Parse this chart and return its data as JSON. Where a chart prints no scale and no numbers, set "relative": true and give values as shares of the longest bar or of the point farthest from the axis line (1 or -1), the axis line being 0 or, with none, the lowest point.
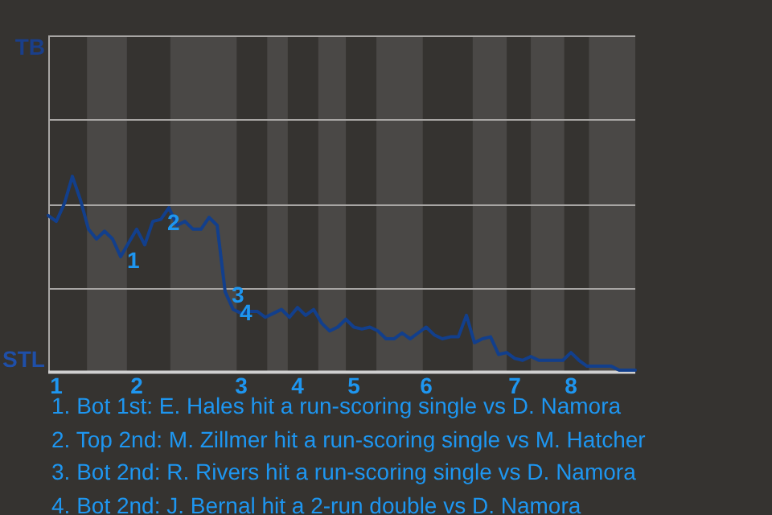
{
  "chart_data": {
    "type": "line",
    "relative": true,
    "categories": [
      null,
      "1",
      null,
      null,
      null,
      null,
      null,
      null,
      null,
      null,
      null,
      "2",
      null,
      null,
      null,
      null,
      null,
      null,
      null,
      null,
      null,
      null,
      null,
      null,
      "3",
      null,
      null,
      null,
      null,
      null,
      null,
      "4",
      null,
      null,
      null,
      null,
      null,
      null,
      "5",
      null,
      null,
      null,
      null,
      null,
      null,
      null,
      null,
      "6",
      null,
      null,
      null,
      null,
      null,
      null,
      null,
      null,
      null,
      null,
      "7",
      null,
      null,
      null,
      null,
      null,
      null,
      "8",
      null,
      null,
      null,
      null,
      null,
      null,
      null,
      null
    ],
    "series": [
      {
        "color": "#123f8c",
        "values": [
          0.8,
          0.77,
          0.86,
          1,
          0.88,
          0.73,
          0.68,
          0.72,
          0.68,
          0.59,
          0.66,
          0.73,
          0.65,
          0.77,
          0.78,
          0.84,
          0.75,
          0.77,
          0.73,
          0.73,
          0.79,
          0.75,
          0.41,
          0.32,
          0.3,
          0.31,
          0.31,
          0.28,
          0.3,
          0.32,
          0.28,
          0.33,
          0.29,
          0.32,
          0.25,
          0.21,
          0.23,
          0.27,
          0.23,
          0.22,
          0.23,
          0.21,
          0.17,
          0.17,
          0.2,
          0.17,
          0.2,
          0.23,
          0.19,
          0.17,
          0.18,
          0.18,
          0.29,
          0.15,
          0.17,
          0.18,
          0.09,
          0.1,
          0.07,
          0.06,
          0.08,
          0.06,
          0.06,
          0.06,
          0.06,
          0.1,
          0.06,
          0.03,
          0.03,
          0.03,
          0.03,
          0.01,
          0.01,
          0.01
        ]
      }
    ],
    "marker": "none",
    "line_style": "solid",
    "ref_lines": [
      {
        "axis": "y",
        "value": 0.43,
        "color": "#a8a6a4"
      },
      {
        "axis": "y",
        "value": 0.86,
        "color": "#a8a6a4"
      },
      {
        "axis": "y",
        "value": 1.29,
        "color": "#a8a6a4"
      },
      {
        "axis": "y",
        "value": 1.72,
        "color": "#a8a6a4"
      }
    ],
    "annotations": [
      "TB",
      "STL",
      "1",
      "2",
      "3",
      "4",
      "1. Bot 1st: E. Hales hit a run-scoring single vs D. Namora",
      "2. Top 2nd: M. Zillmer hit a run-scoring single vs M. Hatcher",
      "3. Bot 2nd: R. Rivers hit a run-scoring single vs D. Namora",
      "4. Bot 2nd: J. Bernal hit a 2-run double vs D. Namora"
    ]
  }
}
